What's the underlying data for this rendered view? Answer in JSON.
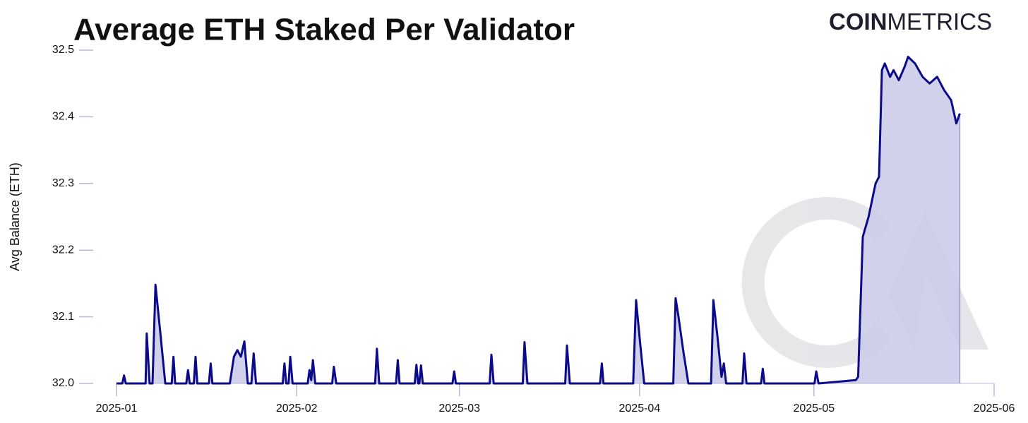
{
  "logo": {
    "bold": "COIN",
    "light": "METRICS"
  },
  "chart_data": {
    "type": "area",
    "title": "Average ETH Staked Per Validator",
    "y_label": "Avg Balance (ETH)",
    "color": "#0b0b8a",
    "fill": "#c9c9e8",
    "xlim": [
      0,
      151
    ],
    "xticks": [
      {
        "value": 0,
        "label": "2025-01"
      },
      {
        "value": 31,
        "label": "2025-02"
      },
      {
        "value": 59,
        "label": "2025-03"
      },
      {
        "value": 90,
        "label": "2025-04"
      },
      {
        "value": 120,
        "label": "2025-05"
      },
      {
        "value": 151,
        "label": "2025-06"
      }
    ],
    "ylim": [
      32,
      32.5
    ],
    "yticks": [
      {
        "value": 32,
        "label": "32.0"
      },
      32.1,
      32.2,
      32.3,
      32.4,
      32.5
    ],
    "x": [
      0,
      1,
      1.3,
      1.6,
      5,
      5.2,
      5.5,
      5.7,
      6.2,
      6.7,
      7.5,
      8.4,
      9.5,
      9.8,
      10.1,
      12,
      12.3,
      12.6,
      13.3,
      13.6,
      13.9,
      15.9,
      16.2,
      16.5,
      19.5,
      20.2,
      20.8,
      21.4,
      22,
      22.6,
      23.2,
      23.6,
      24,
      28.6,
      28.9,
      29.2,
      29.6,
      29.9,
      30.3,
      32.9,
      33.2,
      33.5,
      33.8,
      34.2,
      37.1,
      37.4,
      37.8,
      44.5,
      44.8,
      45.2,
      48.1,
      48.4,
      48.7,
      51.3,
      51.6,
      51.9,
      52.1,
      52.4,
      52.7,
      57.8,
      58.1,
      58.4,
      64.2,
      64.5,
      64.9,
      69.9,
      70.2,
      70.7,
      77.2,
      77.5,
      78,
      83.2,
      83.5,
      83.8,
      88.9,
      89.4,
      90.1,
      90.8,
      95.8,
      96.2,
      96.7,
      97.5,
      98.4,
      102.3,
      102.7,
      103.4,
      104.1,
      104.5,
      104.9,
      107.7,
      108,
      108.4,
      110.9,
      111.2,
      111.5,
      120.1,
      120.4,
      120.8,
      127.2,
      127.6,
      128.4,
      129.4,
      130.6,
      131.2,
      131.7,
      132.2,
      133.1,
      133.7,
      134.6,
      135.6,
      136.2,
      137.4,
      138.7,
      139.9,
      141.2,
      142.4,
      143.6,
      144.5,
      145.1
    ],
    "values": [
      32,
      32,
      32.012,
      32,
      32,
      32.075,
      32.03,
      32,
      32,
      32.148,
      32.08,
      32,
      32,
      32.04,
      32,
      32,
      32.02,
      32,
      32,
      32.04,
      32,
      32,
      32.03,
      32,
      32,
      32.04,
      32.05,
      32.04,
      32.063,
      32,
      32,
      32.045,
      32,
      32,
      32.03,
      32,
      32,
      32.04,
      32,
      32,
      32.02,
      32.005,
      32.035,
      32,
      32,
      32.025,
      32,
      32,
      32.052,
      32,
      32,
      32.035,
      32,
      32,
      32.028,
      32,
      32,
      32.027,
      32,
      32,
      32.018,
      32,
      32,
      32.043,
      32,
      32,
      32.062,
      32,
      32,
      32.057,
      32,
      32,
      32.03,
      32,
      32,
      32.125,
      32.06,
      32,
      32,
      32.128,
      32.1,
      32.05,
      32,
      32,
      32.125,
      32.07,
      32.01,
      32.03,
      32,
      32,
      32.045,
      32,
      32,
      32.022,
      32,
      32,
      32.018,
      32,
      32.005,
      32.01,
      32.22,
      32.25,
      32.3,
      32.31,
      32.47,
      32.48,
      32.46,
      32.47,
      32.455,
      32.475,
      32.49,
      32.48,
      32.46,
      32.45,
      32.46,
      32.44,
      32.425,
      32.39,
      32.405
    ]
  }
}
